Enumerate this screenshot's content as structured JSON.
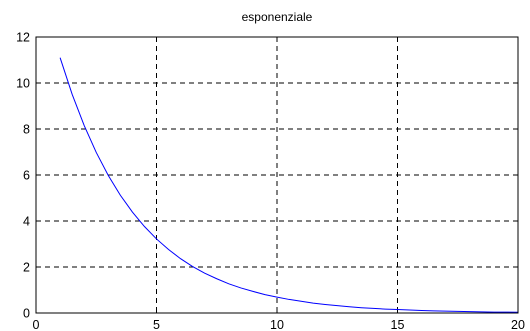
{
  "chart_data": {
    "type": "line",
    "title": "esponenziale",
    "xlabel": "",
    "ylabel": "",
    "xlim": [
      0,
      20
    ],
    "ylim": [
      0,
      12
    ],
    "x_ticks": [
      0,
      5,
      10,
      15,
      20
    ],
    "y_ticks": [
      0,
      2,
      4,
      6,
      8,
      10,
      12
    ],
    "x_tick_labels": [
      "0",
      "5",
      "10",
      "15",
      "20"
    ],
    "y_tick_labels": [
      "0",
      "2",
      "4",
      "6",
      "8",
      "10",
      "12"
    ],
    "grid": true,
    "grid_style": "dashed",
    "series": [
      {
        "color": "#0000ff",
        "x": [
          1,
          1.5,
          2,
          2.5,
          3,
          3.5,
          4,
          4.5,
          5,
          5.5,
          6,
          6.5,
          7,
          7.5,
          8,
          8.5,
          9,
          9.5,
          10,
          10.5,
          11,
          11.5,
          12,
          12.5,
          13,
          13.5,
          14,
          14.5,
          15,
          15.5,
          16,
          16.5,
          17,
          17.5,
          18,
          18.5,
          19,
          19.5,
          20
        ],
        "y": [
          11.1,
          9.51,
          8.15,
          6.98,
          5.98,
          5.12,
          4.39,
          3.76,
          3.22,
          2.76,
          2.36,
          2.02,
          1.73,
          1.49,
          1.27,
          1.09,
          0.94,
          0.8,
          0.69,
          0.59,
          0.51,
          0.43,
          0.37,
          0.32,
          0.27,
          0.23,
          0.2,
          0.17,
          0.15,
          0.13,
          0.11,
          0.09,
          0.08,
          0.07,
          0.06,
          0.05,
          0.04,
          0.04,
          0.03
        ]
      }
    ]
  }
}
